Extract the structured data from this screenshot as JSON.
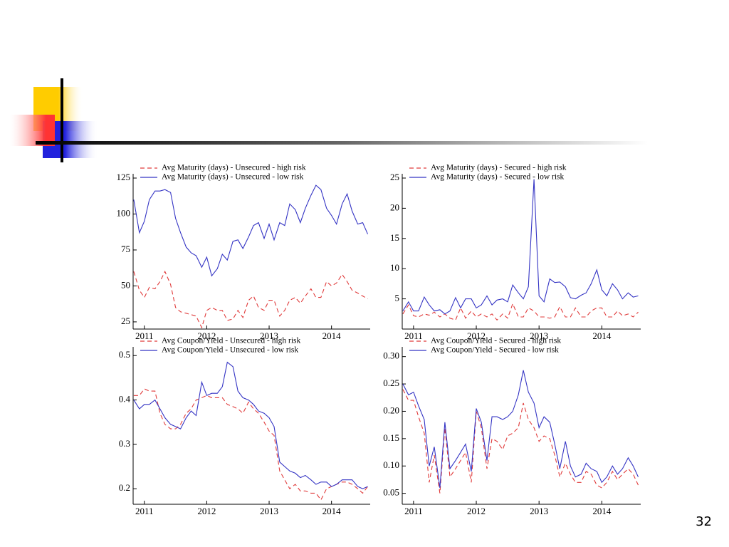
{
  "page_number": "32",
  "chart_data": [
    {
      "type": "line",
      "x": [
        2010.83,
        2010.92,
        2011.0,
        2011.08,
        2011.17,
        2011.25,
        2011.33,
        2011.42,
        2011.5,
        2011.58,
        2011.67,
        2011.75,
        2011.83,
        2011.92,
        2012.0,
        2012.08,
        2012.17,
        2012.25,
        2012.33,
        2012.42,
        2012.5,
        2012.58,
        2012.67,
        2012.75,
        2012.83,
        2012.92,
        2013.0,
        2013.08,
        2013.17,
        2013.25,
        2013.33,
        2013.42,
        2013.5,
        2013.58,
        2013.67,
        2013.75,
        2013.83,
        2013.92,
        2014.0,
        2014.08,
        2014.17,
        2014.25,
        2014.33,
        2014.42,
        2014.5,
        2014.58
      ],
      "xlim": [
        2010.82,
        2014.62
      ],
      "xticks": [
        2011,
        2012,
        2013,
        2014
      ],
      "ylim": [
        20,
        125
      ],
      "yticks": [
        25,
        50,
        75,
        100,
        125
      ],
      "series": [
        {
          "name": "Avg Maturity (days) - Unsecured - high risk",
          "color": "#e03a3a",
          "line_style": "dashed",
          "values": [
            60,
            47,
            42,
            49,
            48,
            53,
            60,
            51,
            35,
            32,
            31,
            30,
            29,
            21,
            33,
            35,
            33,
            33,
            26,
            27,
            33,
            28,
            40,
            43,
            35,
            33,
            40,
            40,
            29,
            33,
            40,
            42,
            38,
            43,
            48,
            42,
            42,
            53,
            50,
            52,
            58,
            53,
            47,
            45,
            43,
            41
          ]
        },
        {
          "name": "Avg Maturity (days) - Unsecured - low risk",
          "color": "#3434c4",
          "line_style": "solid",
          "values": [
            110,
            87,
            95,
            110,
            116,
            116,
            117,
            115,
            97,
            87,
            77,
            73,
            71,
            63,
            70,
            57,
            62,
            72,
            68,
            81,
            82,
            76,
            84,
            92,
            94,
            83,
            93,
            82,
            94,
            92,
            107,
            103,
            94,
            104,
            113,
            120,
            117,
            104,
            99,
            93,
            107,
            114,
            102,
            93,
            94,
            86
          ]
        }
      ]
    },
    {
      "type": "line",
      "x": [
        2010.83,
        2010.92,
        2011.0,
        2011.08,
        2011.17,
        2011.25,
        2011.33,
        2011.42,
        2011.5,
        2011.58,
        2011.67,
        2011.75,
        2011.83,
        2011.92,
        2012.0,
        2012.08,
        2012.17,
        2012.25,
        2012.33,
        2012.42,
        2012.5,
        2012.58,
        2012.67,
        2012.75,
        2012.83,
        2012.92,
        2013.0,
        2013.08,
        2013.17,
        2013.25,
        2013.33,
        2013.42,
        2013.5,
        2013.58,
        2013.67,
        2013.75,
        2013.83,
        2013.92,
        2014.0,
        2014.08,
        2014.17,
        2014.25,
        2014.33,
        2014.42,
        2014.5,
        2014.58
      ],
      "xlim": [
        2010.82,
        2014.62
      ],
      "xticks": [
        2011,
        2012,
        2013,
        2014
      ],
      "ylim": [
        0,
        25
      ],
      "yticks": [
        5,
        10,
        15,
        20,
        25
      ],
      "series": [
        {
          "name": "Avg Maturity (days) - Secured - high risk",
          "color": "#e03a3a",
          "line_style": "dashed",
          "values": [
            2.5,
            4,
            2.2,
            2,
            2.5,
            2.3,
            2.8,
            2,
            2.5,
            1.8,
            1.5,
            3.5,
            1.8,
            3,
            2,
            2.5,
            2,
            2.5,
            1.5,
            2.5,
            1.8,
            4.2,
            2,
            2,
            3.5,
            3,
            2,
            2,
            1.8,
            2,
            3.7,
            2,
            2,
            3.5,
            2,
            2,
            3,
            3.5,
            3.5,
            2,
            2,
            3,
            2.2,
            2.5,
            2,
            2.8
          ]
        },
        {
          "name": "Avg Maturity (days) - Secured - low risk",
          "color": "#3434c4",
          "line_style": "solid",
          "values": [
            3,
            4.5,
            3,
            3,
            5.3,
            4,
            3,
            3.2,
            2.5,
            3,
            5.2,
            3.5,
            5,
            5,
            3.5,
            4,
            5.5,
            4,
            4.8,
            5,
            4.5,
            7.3,
            6,
            5,
            7,
            24.8,
            5.5,
            4.5,
            8.3,
            7.7,
            7.8,
            7,
            5.2,
            5,
            5.6,
            6,
            7.5,
            9.8,
            6.5,
            5.5,
            7.5,
            6.5,
            5,
            6,
            5.3,
            5.5
          ]
        }
      ]
    },
    {
      "type": "line",
      "x": [
        2010.83,
        2010.92,
        2011.0,
        2011.08,
        2011.17,
        2011.25,
        2011.33,
        2011.42,
        2011.5,
        2011.58,
        2011.67,
        2011.75,
        2011.83,
        2011.92,
        2012.0,
        2012.08,
        2012.17,
        2012.25,
        2012.33,
        2012.42,
        2012.5,
        2012.58,
        2012.67,
        2012.75,
        2012.83,
        2012.92,
        2013.0,
        2013.08,
        2013.17,
        2013.25,
        2013.33,
        2013.42,
        2013.5,
        2013.58,
        2013.67,
        2013.75,
        2013.83,
        2013.92,
        2014.0,
        2014.08,
        2014.17,
        2014.25,
        2014.33,
        2014.42,
        2014.5,
        2014.58
      ],
      "xlim": [
        2010.82,
        2014.62
      ],
      "xticks": [
        2011,
        2012,
        2013,
        2014
      ],
      "ylim": [
        0.165,
        0.51
      ],
      "yticks": [
        0.2,
        0.3,
        0.4,
        0.5
      ],
      "series": [
        {
          "name": "Avg Coupon/Yield - Unsecured - high risk",
          "color": "#e03a3a",
          "line_style": "dashed",
          "values": [
            0.41,
            0.41,
            0.425,
            0.42,
            0.42,
            0.37,
            0.345,
            0.335,
            0.335,
            0.345,
            0.37,
            0.38,
            0.4,
            0.405,
            0.41,
            0.405,
            0.405,
            0.405,
            0.39,
            0.385,
            0.38,
            0.37,
            0.395,
            0.38,
            0.37,
            0.35,
            0.33,
            0.32,
            0.24,
            0.22,
            0.2,
            0.21,
            0.195,
            0.195,
            0.19,
            0.19,
            0.175,
            0.2,
            0.205,
            0.21,
            0.215,
            0.215,
            0.21,
            0.2,
            0.19,
            0.205
          ]
        },
        {
          "name": "Avg Coupon/Yield - Unsecured - low risk",
          "color": "#3434c4",
          "line_style": "solid",
          "values": [
            0.4,
            0.38,
            0.39,
            0.39,
            0.4,
            0.38,
            0.36,
            0.345,
            0.34,
            0.335,
            0.36,
            0.375,
            0.365,
            0.44,
            0.41,
            0.415,
            0.415,
            0.43,
            0.485,
            0.475,
            0.42,
            0.405,
            0.4,
            0.39,
            0.375,
            0.37,
            0.36,
            0.34,
            0.26,
            0.25,
            0.24,
            0.235,
            0.225,
            0.23,
            0.22,
            0.21,
            0.215,
            0.215,
            0.205,
            0.21,
            0.22,
            0.22,
            0.22,
            0.205,
            0.2,
            0.205
          ]
        }
      ]
    },
    {
      "type": "line",
      "x": [
        2010.83,
        2010.92,
        2011.0,
        2011.08,
        2011.17,
        2011.25,
        2011.33,
        2011.42,
        2011.5,
        2011.58,
        2011.67,
        2011.75,
        2011.83,
        2011.92,
        2012.0,
        2012.08,
        2012.17,
        2012.25,
        2012.33,
        2012.42,
        2012.5,
        2012.58,
        2012.67,
        2012.75,
        2012.83,
        2012.92,
        2013.0,
        2013.08,
        2013.17,
        2013.25,
        2013.33,
        2013.42,
        2013.5,
        2013.58,
        2013.67,
        2013.75,
        2013.83,
        2013.92,
        2014.0,
        2014.08,
        2014.17,
        2014.25,
        2014.33,
        2014.42,
        2014.5,
        2014.58
      ],
      "xlim": [
        2010.82,
        2014.62
      ],
      "xticks": [
        2011,
        2012,
        2013,
        2014
      ],
      "ylim": [
        0.03,
        0.31
      ],
      "yticks": [
        0.05,
        {
          "value": 0.1,
          "label": "0.10"
        },
        0.15,
        {
          "value": 0.2,
          "label": "0.20"
        },
        0.25,
        {
          "value": 0.3,
          "label": "0.30"
        }
      ],
      "series": [
        {
          "name": "Avg Coupon/Yield - Secured - high risk",
          "color": "#e03a3a",
          "line_style": "dashed",
          "values": [
            0.24,
            0.22,
            0.22,
            0.19,
            0.16,
            0.07,
            0.12,
            0.05,
            0.17,
            0.08,
            0.095,
            0.11,
            0.125,
            0.07,
            0.2,
            0.17,
            0.095,
            0.15,
            0.145,
            0.13,
            0.155,
            0.16,
            0.17,
            0.215,
            0.185,
            0.17,
            0.145,
            0.155,
            0.15,
            0.12,
            0.08,
            0.105,
            0.085,
            0.07,
            0.07,
            0.09,
            0.085,
            0.065,
            0.06,
            0.07,
            0.09,
            0.075,
            0.085,
            0.095,
            0.085,
            0.065
          ]
        },
        {
          "name": "Avg Coupon/Yield - Secured - low risk",
          "color": "#3434c4",
          "line_style": "solid",
          "values": [
            0.25,
            0.23,
            0.235,
            0.21,
            0.185,
            0.1,
            0.135,
            0.06,
            0.18,
            0.095,
            0.11,
            0.125,
            0.14,
            0.09,
            0.205,
            0.18,
            0.11,
            0.19,
            0.19,
            0.185,
            0.19,
            0.2,
            0.23,
            0.275,
            0.235,
            0.215,
            0.17,
            0.19,
            0.18,
            0.14,
            0.095,
            0.145,
            0.1,
            0.08,
            0.085,
            0.105,
            0.095,
            0.09,
            0.07,
            0.08,
            0.1,
            0.085,
            0.095,
            0.115,
            0.1,
            0.08
          ]
        }
      ]
    }
  ]
}
